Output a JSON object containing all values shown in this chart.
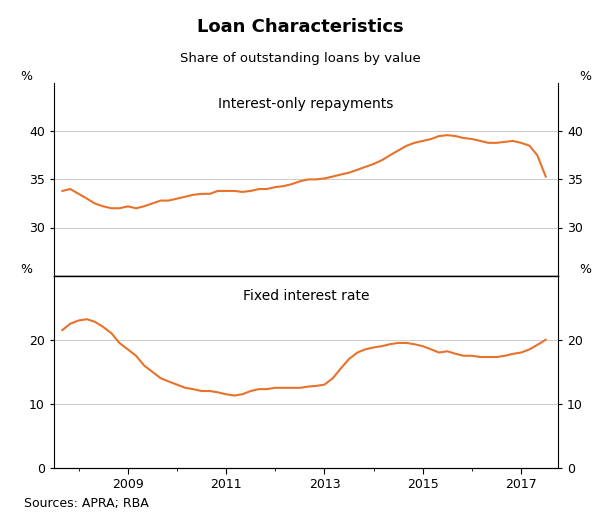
{
  "title": "Loan Characteristics",
  "subtitle": "Share of outstanding loans by value",
  "source": "Sources: APRA; RBA",
  "line_color": "#E8722A",
  "line_width": 1.5,
  "panel1_label": "Interest-only repayments",
  "panel2_label": "Fixed interest rate",
  "panel1_ylim": [
    25,
    45
  ],
  "panel1_yticks": [
    30,
    35,
    40
  ],
  "panel1_ytick_labels": [
    "30",
    "35",
    "40"
  ],
  "panel2_ylim": [
    0,
    30
  ],
  "panel2_yticks": [
    0,
    10,
    20
  ],
  "panel2_ytick_labels": [
    "0",
    "10",
    "20"
  ],
  "xlim_start": 2007.5,
  "xlim_end": 2017.75,
  "xtick_positions": [
    2009,
    2011,
    2013,
    2015,
    2017
  ],
  "panel1_data_x": [
    2007.67,
    2007.83,
    2008.0,
    2008.17,
    2008.33,
    2008.5,
    2008.67,
    2008.83,
    2009.0,
    2009.17,
    2009.33,
    2009.5,
    2009.67,
    2009.83,
    2010.0,
    2010.17,
    2010.33,
    2010.5,
    2010.67,
    2010.83,
    2011.0,
    2011.17,
    2011.33,
    2011.5,
    2011.67,
    2011.83,
    2012.0,
    2012.17,
    2012.33,
    2012.5,
    2012.67,
    2012.83,
    2013.0,
    2013.17,
    2013.33,
    2013.5,
    2013.67,
    2013.83,
    2014.0,
    2014.17,
    2014.33,
    2014.5,
    2014.67,
    2014.83,
    2015.0,
    2015.17,
    2015.33,
    2015.5,
    2015.67,
    2015.83,
    2016.0,
    2016.17,
    2016.33,
    2016.5,
    2016.67,
    2016.83,
    2017.0,
    2017.17,
    2017.33,
    2017.5
  ],
  "panel1_data_y": [
    33.8,
    34.0,
    33.5,
    33.0,
    32.5,
    32.2,
    32.0,
    32.0,
    32.2,
    32.0,
    32.2,
    32.5,
    32.8,
    32.8,
    33.0,
    33.2,
    33.4,
    33.5,
    33.5,
    33.8,
    33.8,
    33.8,
    33.7,
    33.8,
    34.0,
    34.0,
    34.2,
    34.3,
    34.5,
    34.8,
    35.0,
    35.0,
    35.1,
    35.3,
    35.5,
    35.7,
    36.0,
    36.3,
    36.6,
    37.0,
    37.5,
    38.0,
    38.5,
    38.8,
    39.0,
    39.2,
    39.5,
    39.6,
    39.5,
    39.3,
    39.2,
    39.0,
    38.8,
    38.8,
    38.9,
    39.0,
    38.8,
    38.5,
    37.5,
    35.3
  ],
  "panel2_data_x": [
    2007.67,
    2007.83,
    2008.0,
    2008.17,
    2008.33,
    2008.5,
    2008.67,
    2008.83,
    2009.0,
    2009.17,
    2009.33,
    2009.5,
    2009.67,
    2009.83,
    2010.0,
    2010.17,
    2010.33,
    2010.5,
    2010.67,
    2010.83,
    2011.0,
    2011.17,
    2011.33,
    2011.5,
    2011.67,
    2011.83,
    2012.0,
    2012.17,
    2012.33,
    2012.5,
    2012.67,
    2012.83,
    2013.0,
    2013.17,
    2013.33,
    2013.5,
    2013.67,
    2013.83,
    2014.0,
    2014.17,
    2014.33,
    2014.5,
    2014.67,
    2014.83,
    2015.0,
    2015.17,
    2015.33,
    2015.5,
    2015.67,
    2015.83,
    2016.0,
    2016.17,
    2016.33,
    2016.5,
    2016.67,
    2016.83,
    2017.0,
    2017.17,
    2017.33,
    2017.5
  ],
  "panel2_data_y": [
    21.5,
    22.5,
    23.0,
    23.2,
    22.8,
    22.0,
    21.0,
    19.5,
    18.5,
    17.5,
    16.0,
    15.0,
    14.0,
    13.5,
    13.0,
    12.5,
    12.3,
    12.0,
    12.0,
    11.8,
    11.5,
    11.3,
    11.5,
    12.0,
    12.3,
    12.3,
    12.5,
    12.5,
    12.5,
    12.5,
    12.7,
    12.8,
    13.0,
    14.0,
    15.5,
    17.0,
    18.0,
    18.5,
    18.8,
    19.0,
    19.3,
    19.5,
    19.5,
    19.3,
    19.0,
    18.5,
    18.0,
    18.2,
    17.8,
    17.5,
    17.5,
    17.3,
    17.3,
    17.3,
    17.5,
    17.8,
    18.0,
    18.5,
    19.2,
    20.0
  ]
}
